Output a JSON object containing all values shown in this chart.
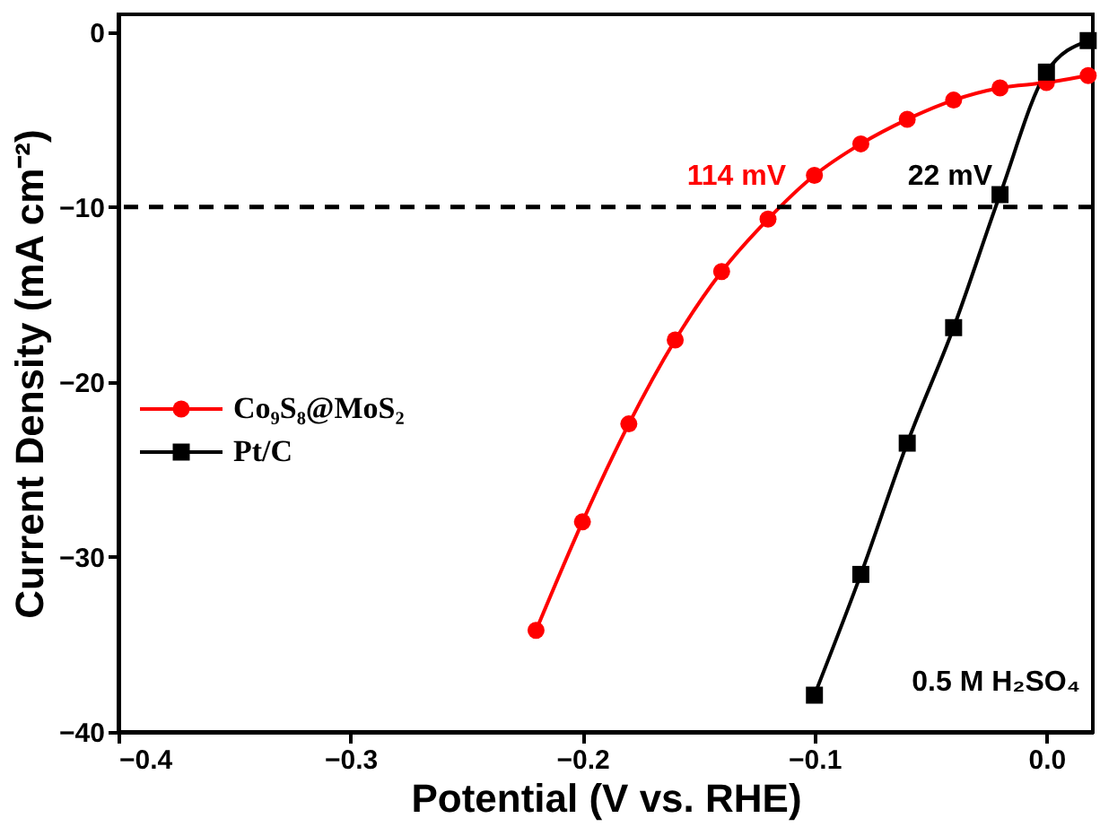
{
  "chart_data": {
    "type": "line",
    "xlabel": "Potential (V vs. RHE)",
    "ylabel": "Current Density (mA cm⁻²)",
    "xlim": [
      -0.4,
      0.02
    ],
    "xticks": [
      -0.4,
      -0.3,
      -0.2,
      -0.1,
      {
        "value": 0.0,
        "label": "0.0"
      }
    ],
    "ylim": [
      -40,
      1
    ],
    "yticks": [
      0,
      -10,
      -20,
      -30,
      -40
    ],
    "grid": false,
    "legend": "left",
    "line_style": "solid",
    "series": [
      {
        "name": "Co₉S₈@MoS₂",
        "color": "#ff0000",
        "marker": "circle",
        "x": [
          0.018,
          0.0,
          -0.02,
          -0.04,
          -0.06,
          -0.08,
          -0.1,
          -0.12,
          -0.14,
          -0.16,
          -0.18,
          -0.2,
          -0.22
        ],
        "values": [
          -2.5,
          -2.9,
          -3.2,
          -3.9,
          -5.0,
          -6.4,
          -8.2,
          -10.7,
          -13.7,
          -17.6,
          -22.4,
          -28.0,
          -34.2
        ]
      },
      {
        "name": "Pt/C",
        "color": "#000000",
        "marker": "square",
        "x": [
          0.018,
          0.0,
          -0.02,
          -0.04,
          -0.06,
          -0.08,
          -0.1
        ],
        "values": [
          -0.5,
          -2.3,
          -9.3,
          -16.9,
          -23.5,
          -31.0,
          -37.9
        ]
      }
    ],
    "ref_lines": [
      {
        "axis": "y",
        "value": -10,
        "color": "#000000",
        "line_style": "dashed"
      }
    ],
    "annotations": [
      "114 mV",
      "22 mV",
      "0.5 M H₂SO₄"
    ]
  }
}
